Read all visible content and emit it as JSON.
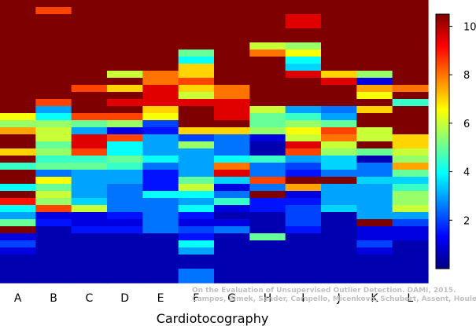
{
  "chart_data": {
    "type": "heatmap",
    "title": "",
    "xlabel": "Cardiotocography",
    "ylabel": "",
    "categories": [
      "A",
      "B",
      "C",
      "D",
      "E",
      "F",
      "G",
      "H",
      "I",
      "J",
      "K",
      "L"
    ],
    "n_rows": 40,
    "colorbar": {
      "range": [
        0,
        10.5
      ],
      "ticks": [
        2,
        4,
        6,
        8,
        10
      ]
    },
    "colormap": [
      "#00007f",
      "#0000ff",
      "#007fff",
      "#00ffff",
      "#7fff7f",
      "#ffff00",
      "#ff7f00",
      "#ff0000",
      "#7f0000"
    ],
    "columns": [
      [
        10.5,
        10.5,
        10.5,
        10.5,
        10.5,
        10.5,
        10.5,
        10.5,
        10.5,
        10.5,
        10.5,
        10.5,
        10.5,
        10.5,
        10.5,
        10.5,
        6.5,
        5.5,
        7.5,
        10.5,
        10.5,
        7,
        10.5,
        4.5,
        10.5,
        10.5,
        4,
        10.5,
        9,
        4,
        3,
        5,
        10.5,
        1,
        2,
        1,
        0.5,
        0.5,
        0.5,
        0.5
      ],
      [
        10.5,
        8.5,
        10.5,
        10.5,
        10.5,
        10.5,
        10.5,
        10.5,
        10.5,
        10.5,
        10.5,
        10.5,
        10.5,
        10.5,
        8.5,
        3,
        4,
        5.5,
        6,
        6,
        5,
        5.5,
        4.5,
        5,
        2.5,
        6.5,
        5,
        6,
        5.5,
        8.5,
        1,
        1.5,
        0.5,
        0.5,
        0.5,
        0.5,
        0.5,
        0.5,
        0.5,
        0.5
      ],
      [
        10.5,
        10.5,
        10.5,
        10.5,
        10.5,
        10.5,
        10.5,
        10.5,
        10.5,
        10.5,
        10.5,
        10.5,
        8.5,
        10.5,
        10.5,
        10.5,
        8.5,
        5,
        3,
        9.5,
        9.5,
        8.5,
        4.5,
        5,
        3,
        3,
        3,
        3,
        3.5,
        6,
        1,
        1,
        1.5,
        0.5,
        0.5,
        0.5,
        0.5,
        0.5,
        0.5,
        0.5
      ],
      [
        10.5,
        10.5,
        10.5,
        10.5,
        10.5,
        10.5,
        10.5,
        10.5,
        10.5,
        10.5,
        6,
        10.5,
        7,
        10.5,
        9.5,
        10.5,
        8.5,
        5.5,
        1,
        8.5,
        4,
        4,
        5,
        4.5,
        3,
        3,
        2.5,
        2.5,
        2.5,
        2.5,
        1.5,
        1,
        1.5,
        0.5,
        0.5,
        0.5,
        0.5,
        0.5,
        0.5,
        0.5
      ],
      [
        10.5,
        10.5,
        10.5,
        10.5,
        10.5,
        10.5,
        10.5,
        10.5,
        10.5,
        10.5,
        8,
        8,
        9.5,
        9.5,
        9.5,
        7,
        6.5,
        2,
        1.5,
        3,
        3,
        3,
        4,
        2.5,
        1.5,
        1.5,
        1.5,
        4,
        2.5,
        2.5,
        2.5,
        2.5,
        2.5,
        0.5,
        0.5,
        0.5,
        0.5,
        0.5,
        0.5,
        0.5
      ],
      [
        10.5,
        10.5,
        10.5,
        10.5,
        10.5,
        10.5,
        10.5,
        5,
        4,
        7,
        7,
        8.5,
        7,
        6,
        9.5,
        10.5,
        10.5,
        10.5,
        7,
        2,
        5.5,
        3,
        3,
        3,
        3,
        5,
        6,
        4,
        3,
        4,
        1.5,
        1,
        2,
        1.5,
        4,
        3,
        0.5,
        0.5,
        2.5,
        2.5
      ],
      [
        10.5,
        10.5,
        10.5,
        10.5,
        10.5,
        10.5,
        10.5,
        10.5,
        10.5,
        10.5,
        10.5,
        10.5,
        8,
        8,
        9.5,
        9.5,
        9.5,
        10.5,
        7,
        2.5,
        2.5,
        2.5,
        4,
        8,
        9.5,
        3.5,
        1,
        2.5,
        4.5,
        1,
        0.5,
        1,
        2.5,
        0.5,
        0.5,
        0.5,
        0.5,
        0.5,
        0.5,
        0.5
      ],
      [
        10.5,
        10.5,
        10.5,
        10.5,
        10.5,
        10.5,
        6,
        8,
        10.5,
        10.5,
        10.5,
        10.5,
        10.5,
        10.5,
        10.5,
        6,
        5,
        5,
        5.5,
        1,
        0.5,
        0.5,
        4.5,
        2.5,
        2.5,
        8.5,
        2.5,
        10.5,
        1.5,
        1.5,
        0.5,
        0.5,
        0.5,
        5,
        0.5,
        0.5,
        0.5,
        0.5,
        0.5,
        0.5
      ],
      [
        10.5,
        10.5,
        9.5,
        9.5,
        10.5,
        10.5,
        5.5,
        6.5,
        4,
        3.5,
        9.5,
        10.5,
        10.5,
        10.5,
        10.5,
        3,
        4.5,
        5.5,
        6.5,
        6,
        9.5,
        8.5,
        3,
        2,
        1.5,
        10.5,
        7.5,
        1,
        1.5,
        2,
        2,
        2,
        1.5,
        0.5,
        0.5,
        0.5,
        0.5,
        0.5,
        0.5,
        0.5
      ],
      [
        10.5,
        10.5,
        10.5,
        10.5,
        10.5,
        10.5,
        10.5,
        10.5,
        10.5,
        10.5,
        7,
        9.5,
        10.5,
        10.5,
        10.5,
        2.5,
        3,
        5,
        8.5,
        8,
        6,
        5.5,
        3.5,
        3.5,
        2.5,
        10.5,
        3,
        3,
        3,
        3.5,
        0.5,
        0.5,
        0.5,
        0.5,
        0.5,
        0.5,
        0.5,
        0.5,
        0.5,
        0.5
      ],
      [
        10.5,
        10.5,
        10.5,
        10.5,
        10.5,
        10.5,
        10.5,
        10.5,
        10.5,
        10.5,
        5.5,
        1,
        7.5,
        6.5,
        10.5,
        7,
        10.5,
        10.5,
        6,
        6,
        10.5,
        5,
        0.5,
        2.5,
        2.5,
        3.5,
        3,
        3,
        3,
        3,
        3,
        10.5,
        1,
        1,
        2,
        1,
        0.5,
        0.5,
        0.5,
        0.5
      ],
      [
        10.5,
        10.5,
        10.5,
        10.5,
        10.5,
        10.5,
        10.5,
        10.5,
        10.5,
        10.5,
        10.5,
        10.5,
        8,
        10.5,
        4.5,
        10.5,
        10.5,
        10.5,
        10.5,
        7,
        7,
        6,
        5.5,
        7.5,
        5,
        3.5,
        4.5,
        5.5,
        5.5,
        6,
        3,
        2,
        1,
        1,
        0.5,
        0.5,
        0.5,
        0.5,
        0.5,
        0.5
      ]
    ]
  },
  "caption": {
    "line1": "On the Evaluation of Unsupervised Outlier Detection. DAMI, 2015.",
    "line2": "Campos, Zimek, Sander, Campello, Micenková, Schubert, Assent, Houle"
  }
}
